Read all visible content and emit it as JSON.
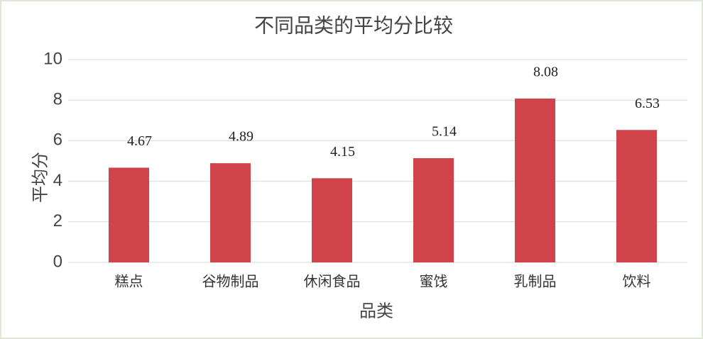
{
  "chart_data": {
    "type": "bar",
    "title": "不同品类的平均分比较",
    "x_label": "品类",
    "y_label": "平均分",
    "categories": [
      "糕点",
      "谷物制品",
      "休闲食品",
      "蜜饯",
      "乳制品",
      "饮料"
    ],
    "values": [
      4.67,
      4.89,
      4.15,
      5.14,
      8.08,
      6.53
    ],
    "color": "#d0434a",
    "ylim": [
      0,
      10
    ],
    "yticks": [
      0,
      2,
      4,
      6,
      8,
      10
    ],
    "grid": true
  }
}
